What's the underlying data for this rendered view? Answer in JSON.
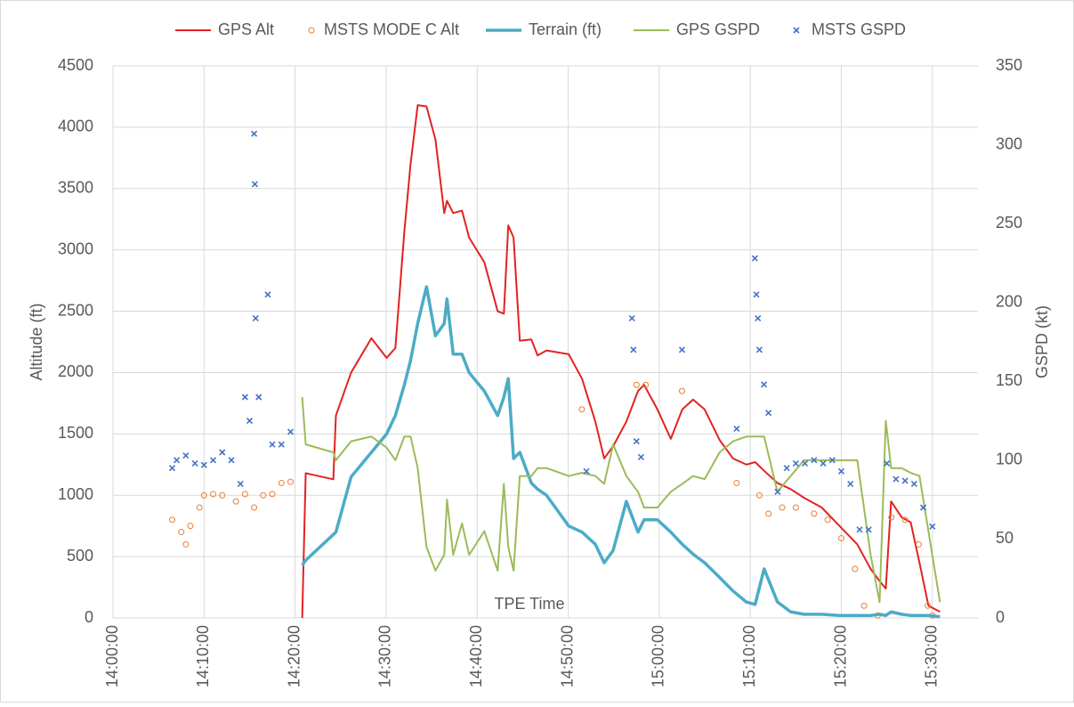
{
  "chart_data": {
    "type": "line",
    "x_label": "TPE Time",
    "y_label": "Altitude (ft)",
    "y2_label": "GSPD (kt)",
    "grid": true,
    "legend": "top",
    "xlim": [
      "14:00:00",
      "15:35:00"
    ],
    "xticks": [
      "14:00:00",
      "14:10:00",
      "14:20:00",
      "14:30:00",
      "14:40:00",
      "14:50:00",
      "15:00:00",
      "15:10:00",
      "15:20:00",
      "15:30:00"
    ],
    "ylim": [
      0,
      4500
    ],
    "yticks": [
      0,
      500,
      1000,
      1500,
      2000,
      2500,
      3000,
      3500,
      4000,
      4500
    ],
    "y2lim": [
      0,
      350
    ],
    "y2ticks": [
      0,
      50,
      100,
      150,
      200,
      250,
      300,
      350
    ],
    "x": [
      "14:20:47",
      "14:21:10",
      "14:24:12",
      "14:24:29",
      "14:26:09",
      "14:28:23",
      "14:30:03",
      "14:31:01",
      "14:32:00",
      "14:32:41",
      "14:33:28",
      "14:34:26",
      "14:35:25",
      "14:36:23",
      "14:36:41",
      "14:37:22",
      "14:38:20",
      "14:39:07",
      "14:40:47",
      "14:42:15",
      "14:42:56",
      "14:43:25",
      "14:44:00",
      "14:44:41",
      "14:45:57",
      "14:46:38",
      "14:47:37",
      "14:50:03",
      "14:51:31",
      "14:52:59",
      "14:53:57",
      "14:54:56",
      "14:56:23",
      "14:57:40",
      "14:58:20",
      "14:59:48",
      "15:01:16",
      "15:02:32",
      "15:03:43",
      "15:04:59",
      "15:06:38",
      "15:08:06",
      "15:09:34",
      "15:10:32",
      "15:11:31",
      "15:12:59",
      "15:14:26",
      "15:15:54",
      "15:17:51",
      "15:19:48",
      "15:21:45",
      "15:23:13",
      "15:24:12",
      "15:24:53",
      "15:25:28",
      "15:26:38",
      "15:27:37",
      "15:28:35",
      "15:29:34",
      "15:30:50"
    ],
    "series": [
      {
        "name": "GPS Alt",
        "kind": "line",
        "color": "#e32222",
        "width": 2,
        "values": [
          0,
          1180,
          1130,
          1650,
          2000,
          2280,
          2120,
          2200,
          3150,
          3700,
          4180,
          4170,
          3900,
          3300,
          3400,
          3300,
          3320,
          3100,
          2900,
          2500,
          2480,
          3200,
          3100,
          2260,
          2270,
          2140,
          2180,
          2150,
          1950,
          1600,
          1300,
          1400,
          1600,
          1850,
          1900,
          1700,
          1460,
          1700,
          1780,
          1700,
          1450,
          1300,
          1250,
          1270,
          1200,
          1100,
          1050,
          980,
          900,
          750,
          600,
          400,
          300,
          240,
          950,
          820,
          780,
          450,
          100,
          50
        ]
      },
      {
        "name": "MSTS MODE C Alt",
        "kind": "scatter",
        "marker": "circle",
        "color": "#ed7d31",
        "x": [
          "14:06:30",
          "14:07:30",
          "14:08:00",
          "14:08:30",
          "14:09:30",
          "14:10:00",
          "14:11:00",
          "14:12:00",
          "14:13:30",
          "14:14:30",
          "14:15:30",
          "14:16:30",
          "14:17:30",
          "14:18:30",
          "14:19:30",
          "14:51:30",
          "14:57:30",
          "14:58:30",
          "15:02:30",
          "15:08:30",
          "15:11:00",
          "15:12:00",
          "15:13:30",
          "15:15:00",
          "15:17:00",
          "15:18:30",
          "15:20:00",
          "15:21:30",
          "15:22:30",
          "15:24:00",
          "15:25:30",
          "15:27:00",
          "15:28:30",
          "15:29:30",
          "15:30:00"
        ],
        "values": [
          800,
          700,
          600,
          750,
          900,
          1000,
          1010,
          1000,
          950,
          1010,
          900,
          1000,
          1010,
          1100,
          1110,
          1700,
          1900,
          1900,
          1850,
          1100,
          1000,
          850,
          900,
          900,
          850,
          800,
          650,
          400,
          100,
          20,
          820,
          800,
          600,
          100,
          20
        ]
      },
      {
        "name": "Terrain (ft)",
        "kind": "line",
        "color": "#4bacc6",
        "width": 3.5,
        "values": [
          430,
          470,
          680,
          700,
          1150,
          1350,
          1500,
          1650,
          1900,
          2100,
          2400,
          2700,
          2300,
          2400,
          2600,
          2150,
          2150,
          2000,
          1850,
          1650,
          1800,
          1950,
          1300,
          1350,
          1100,
          1050,
          1000,
          750,
          700,
          600,
          450,
          550,
          950,
          700,
          800,
          800,
          700,
          600,
          520,
          450,
          330,
          220,
          130,
          110,
          400,
          130,
          50,
          30,
          30,
          20,
          20,
          20,
          30,
          20,
          50,
          30,
          20,
          20,
          20,
          10
        ]
      },
      {
        "name": "GPS GSPD",
        "kind": "line",
        "axis": "y2",
        "color": "#9bbb59",
        "width": 2,
        "values": [
          140,
          110,
          105,
          100,
          112,
          115,
          108,
          100,
          115,
          115,
          95,
          45,
          30,
          40,
          75,
          40,
          60,
          40,
          55,
          30,
          85,
          45,
          30,
          90,
          90,
          95,
          95,
          90,
          92,
          90,
          85,
          110,
          90,
          80,
          70,
          70,
          80,
          85,
          90,
          88,
          105,
          112,
          115,
          115,
          115,
          80,
          90,
          100,
          100,
          100,
          100,
          40,
          10,
          125,
          95,
          95,
          92,
          90,
          55,
          10
        ]
      },
      {
        "name": "MSTS GSPD",
        "kind": "scatter",
        "marker": "x",
        "axis": "y2",
        "color": "#4472c4",
        "x": [
          "14:06:30",
          "14:07:00",
          "14:08:00",
          "14:09:00",
          "14:10:00",
          "14:11:00",
          "14:12:00",
          "14:13:00",
          "14:14:00",
          "14:14:30",
          "14:15:00",
          "14:15:30",
          "14:15:35",
          "14:15:40",
          "14:16:00",
          "14:17:00",
          "14:17:30",
          "14:18:30",
          "14:19:30",
          "14:52:00",
          "14:57:00",
          "14:57:10",
          "14:57:30",
          "14:58:00",
          "15:02:30",
          "15:08:30",
          "15:10:30",
          "15:10:40",
          "15:10:50",
          "15:11:00",
          "15:11:30",
          "15:12:00",
          "15:13:00",
          "15:14:00",
          "15:15:00",
          "15:16:00",
          "15:17:00",
          "15:18:00",
          "15:19:00",
          "15:20:00",
          "15:21:00",
          "15:22:00",
          "15:23:00",
          "15:25:00",
          "15:26:00",
          "15:27:00",
          "15:28:00",
          "15:29:00",
          "15:30:00"
        ],
        "values": [
          95,
          100,
          103,
          98,
          97,
          100,
          105,
          100,
          85,
          140,
          125,
          307,
          275,
          190,
          140,
          205,
          110,
          110,
          118,
          93,
          190,
          170,
          112,
          102,
          170,
          120,
          228,
          205,
          190,
          170,
          148,
          130,
          80,
          95,
          98,
          98,
          100,
          98,
          100,
          93,
          85,
          56,
          56,
          98,
          88,
          87,
          85,
          70,
          58
        ]
      }
    ]
  }
}
